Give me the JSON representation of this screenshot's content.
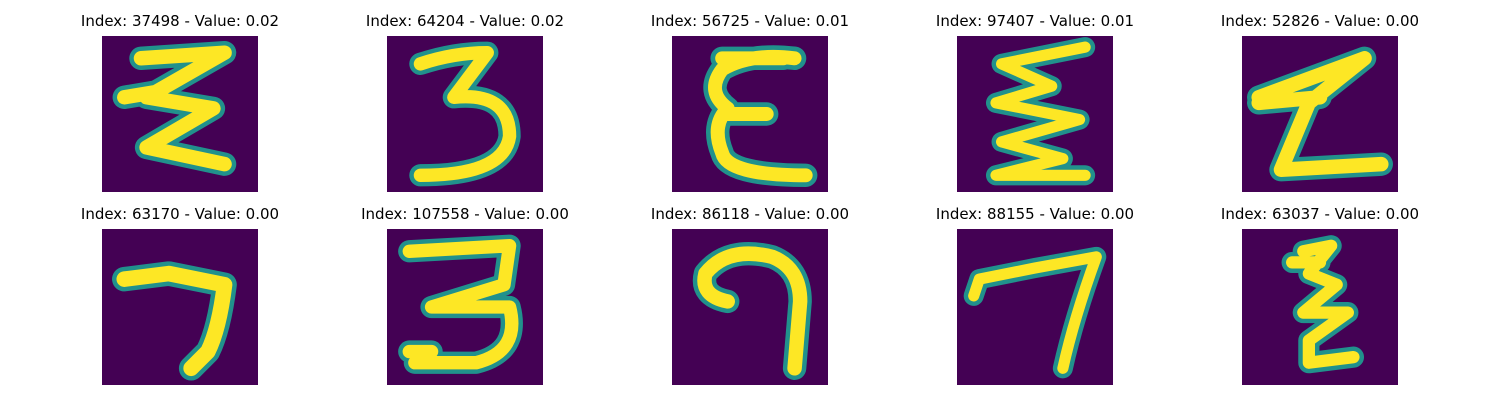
{
  "colors": {
    "background": "#440154",
    "stroke_core": "#fde725",
    "stroke_edge": "#21918c",
    "stroke_halo": "#3b528b"
  },
  "figure": {
    "panels": [
      {
        "title": "Index: 37498 - Value: 0.02",
        "glyph": "zigzag-sigma"
      },
      {
        "title": "Index: 64204 - Value: 0.02",
        "glyph": "three"
      },
      {
        "title": "Index: 56725 - Value: 0.01",
        "glyph": "epsilon"
      },
      {
        "title": "Index: 97407 - Value: 0.01",
        "glyph": "zigzag"
      },
      {
        "title": "Index: 52826 - Value: 0.00",
        "glyph": "z"
      },
      {
        "title": "Index: 63170 - Value: 0.00",
        "glyph": "seven"
      },
      {
        "title": "Index: 107558 - Value: 0.00",
        "glyph": "three"
      },
      {
        "title": "Index: 86118 - Value: 0.00",
        "glyph": "curl-seven"
      },
      {
        "title": "Index: 88155 - Value: 0.00",
        "glyph": "seven"
      },
      {
        "title": "Index: 63037 - Value: 0.00",
        "glyph": "epsilon-small"
      }
    ]
  }
}
